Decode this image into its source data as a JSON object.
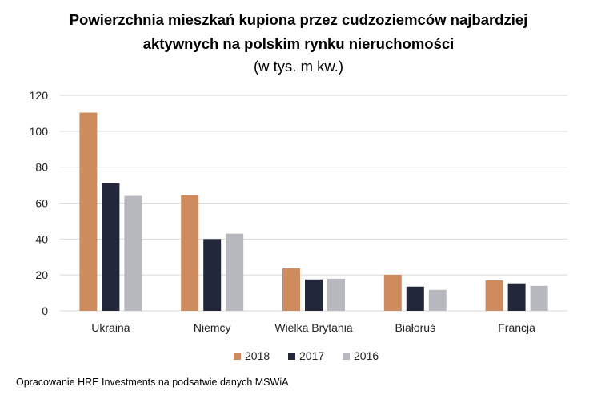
{
  "chart_data": {
    "type": "bar",
    "title_line1": "Powierzchnia mieszkań kupiona przez cudzoziemców najbardziej",
    "title_line2": "aktywnych na polskim rynku nieruchomości",
    "subtitle": "(w tys. m kw.)",
    "categories": [
      "Ukraina",
      "Niemcy",
      "Wielka Brytania",
      "Białoruś",
      "Francja"
    ],
    "series": [
      {
        "name": "2018",
        "color": "#CD8B5E",
        "values": [
          110.4,
          64.4,
          23.7,
          20.1,
          17.0
        ]
      },
      {
        "name": "2017",
        "color": "#22283A",
        "values": [
          71.1,
          40.0,
          17.5,
          13.5,
          15.3
        ]
      },
      {
        "name": "2016",
        "color": "#B8B8BF",
        "values": [
          64.0,
          43.0,
          17.9,
          11.7,
          13.9
        ]
      }
    ],
    "yticks": [
      "0",
      "20",
      "40",
      "60",
      "80",
      "100",
      "120"
    ],
    "ylim": [
      0,
      120
    ],
    "grid": true,
    "legend": "bottom",
    "xlabel": "",
    "ylabel": ""
  },
  "source": "Opracowanie HRE Investments na podsatwie danych MSWiA"
}
